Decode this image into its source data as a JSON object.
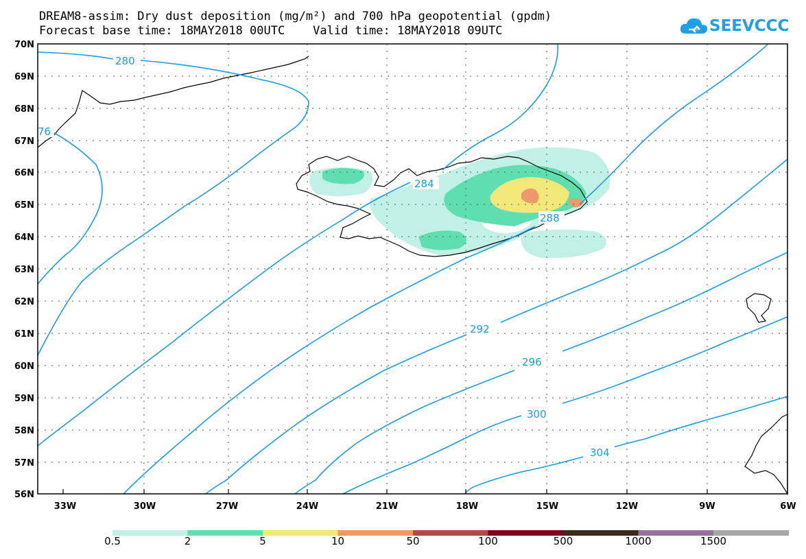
{
  "header": {
    "title_line1": "DREAM8-assim: Dry dust deposition (mg/m²) and 700 hPa geopotential (gpdm)",
    "title_line2": "Forecast base time: 18MAY2018 00UTC    Valid time: 18MAY2018 09UTC",
    "logo_text": "SEEVCCC",
    "logo_icon": "cloud-icon"
  },
  "map": {
    "lat_labels": [
      "70N",
      "69N",
      "68N",
      "67N",
      "66N",
      "65N",
      "64N",
      "63N",
      "62N",
      "61N",
      "60N",
      "59N",
      "58N",
      "57N",
      "56N"
    ],
    "lon_labels": [
      "33W",
      "30W",
      "27W",
      "24W",
      "21W",
      "18W",
      "15W",
      "12W",
      "9W",
      "6W"
    ],
    "contour_labels": [
      "280",
      "76",
      "284",
      "288",
      "292",
      "296",
      "300",
      "304"
    ],
    "contour_color": "#1a9be6",
    "region": "Iceland"
  },
  "legend": {
    "thresholds": [
      "0.5",
      "2",
      "5",
      "10",
      "50",
      "100",
      "500",
      "1000",
      "1500"
    ],
    "colors": [
      "#c1f1e6",
      "#5fdfb0",
      "#f2e87a",
      "#ec9a6c",
      "#ad4d47",
      "#800020",
      "#3b2a19",
      "#98709f",
      "#a8a8a8"
    ]
  }
}
